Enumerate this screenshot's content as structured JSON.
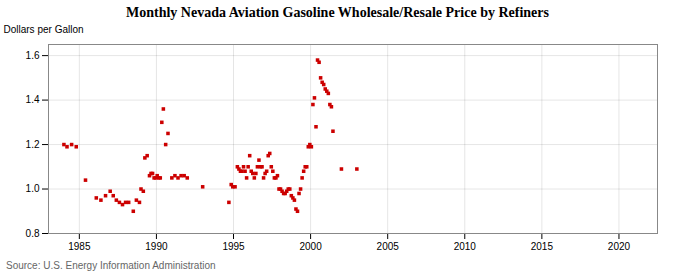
{
  "chart_data": {
    "type": "scatter",
    "title": "Monthly Nevada Aviation Gasoline Wholesale/Resale Price by Refiners",
    "ylabel": "Dollars per Gallon",
    "source": "Source: U.S. Energy Information Administration",
    "color": "#cc0000",
    "marker": "square",
    "grid": true,
    "xlim": [
      1983.0,
      2022.5
    ],
    "ylim": [
      0.8,
      1.65
    ],
    "xticks": [
      1985,
      1990,
      1995,
      2000,
      2005,
      2010,
      2015,
      2020
    ],
    "yticks": [
      0.8,
      {
        "value": 1.0,
        "label": "1.0"
      },
      1.2,
      1.4,
      1.6
    ],
    "x": [
      1984.0,
      1984.2,
      1984.5,
      1984.8,
      1985.4,
      1986.1,
      1986.4,
      1986.7,
      1987.0,
      1987.2,
      1987.4,
      1987.6,
      1987.8,
      1988.0,
      1988.2,
      1988.5,
      1988.7,
      1988.9,
      1989.0,
      1989.15,
      1989.25,
      1989.4,
      1989.55,
      1989.65,
      1989.75,
      1989.85,
      1989.95,
      1990.05,
      1990.15,
      1990.25,
      1990.35,
      1990.45,
      1990.6,
      1990.75,
      1991.0,
      1991.2,
      1991.4,
      1991.6,
      1991.8,
      1992.0,
      1993.0,
      1994.7,
      1994.85,
      1994.95,
      1995.1,
      1995.25,
      1995.35,
      1995.45,
      1995.55,
      1995.65,
      1995.75,
      1995.85,
      1995.95,
      1996.05,
      1996.15,
      1996.25,
      1996.35,
      1996.45,
      1996.55,
      1996.65,
      1996.75,
      1996.85,
      1996.95,
      1997.05,
      1997.15,
      1997.25,
      1997.35,
      1997.45,
      1997.55,
      1997.65,
      1997.75,
      1997.85,
      1997.95,
      1998.05,
      1998.15,
      1998.25,
      1998.35,
      1998.45,
      1998.55,
      1998.65,
      1998.75,
      1998.85,
      1998.95,
      1999.05,
      1999.15,
      1999.25,
      1999.35,
      1999.45,
      1999.55,
      1999.65,
      1999.75,
      1999.85,
      1999.95,
      2000.05,
      2000.15,
      2000.25,
      2000.35,
      2000.45,
      2000.55,
      2000.65,
      2000.75,
      2000.85,
      2000.95,
      2001.05,
      2001.15,
      2001.25,
      2001.35,
      2001.45,
      2002.0,
      2003.0
    ],
    "values": [
      1.2,
      1.19,
      1.2,
      1.19,
      1.04,
      0.96,
      0.95,
      0.97,
      0.99,
      0.97,
      0.95,
      0.94,
      0.93,
      0.94,
      0.94,
      0.9,
      0.95,
      0.94,
      1.0,
      0.99,
      1.14,
      1.15,
      1.06,
      1.07,
      1.07,
      1.05,
      1.05,
      1.06,
      1.05,
      1.05,
      1.3,
      1.36,
      1.2,
      1.25,
      1.05,
      1.06,
      1.05,
      1.06,
      1.06,
      1.05,
      1.01,
      0.94,
      1.02,
      1.01,
      1.01,
      1.1,
      1.09,
      1.08,
      1.08,
      1.1,
      1.08,
      1.05,
      1.1,
      1.15,
      1.08,
      1.07,
      1.05,
      1.07,
      1.1,
      1.13,
      1.1,
      1.1,
      1.05,
      1.07,
      1.08,
      1.15,
      1.16,
      1.1,
      1.08,
      1.05,
      1.05,
      1.06,
      1.0,
      1.0,
      0.99,
      0.98,
      0.98,
      0.99,
      1.0,
      1.0,
      0.97,
      0.96,
      0.95,
      0.91,
      0.9,
      0.98,
      1.0,
      1.05,
      1.08,
      1.1,
      1.1,
      1.19,
      1.2,
      1.19,
      1.38,
      1.41,
      1.28,
      1.58,
      1.57,
      1.5,
      1.48,
      1.47,
      1.45,
      1.44,
      1.43,
      1.38,
      1.37,
      1.26,
      1.09,
      1.09
    ]
  }
}
